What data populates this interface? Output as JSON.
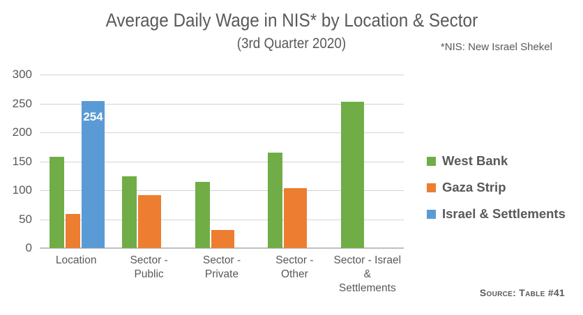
{
  "chart_data": {
    "type": "bar",
    "title": "Average Daily Wage in NIS* by Location & Sector",
    "subtitle": "(3rd Quarter 2020)",
    "footnote": "*NIS: New Israel Shekel",
    "source": "Source: Table #41",
    "categories": [
      "Location",
      "Sector -\nPublic",
      "Sector -\nPrivate",
      "Sector -\nOther",
      "Sector - Israel\n&\nSettlements"
    ],
    "series": [
      {
        "name": "West Bank",
        "color": "#70AD47",
        "values": [
          158,
          124,
          114,
          165,
          253
        ]
      },
      {
        "name": "Gaza Strip",
        "color": "#ED7D31",
        "values": [
          59,
          92,
          31,
          104,
          null
        ]
      },
      {
        "name": "Israel & Settlements",
        "color": "#5B9BD5",
        "values": [
          254,
          null,
          null,
          null,
          null
        ]
      }
    ],
    "data_labels": [
      {
        "series_index": 2,
        "category_index": 0,
        "text": "254"
      }
    ],
    "xlabel": "",
    "ylabel": "",
    "ylim": [
      0,
      300
    ],
    "yticks": [
      0,
      50,
      100,
      150,
      200,
      250,
      300
    ],
    "grid": true,
    "legend_position": "right"
  },
  "colors": {
    "text": "#595959",
    "gridline": "#D3D3D3",
    "axis_line": "#BFBFBF",
    "background": "#FFFFFF",
    "bar_label": "#FFFFFF"
  }
}
